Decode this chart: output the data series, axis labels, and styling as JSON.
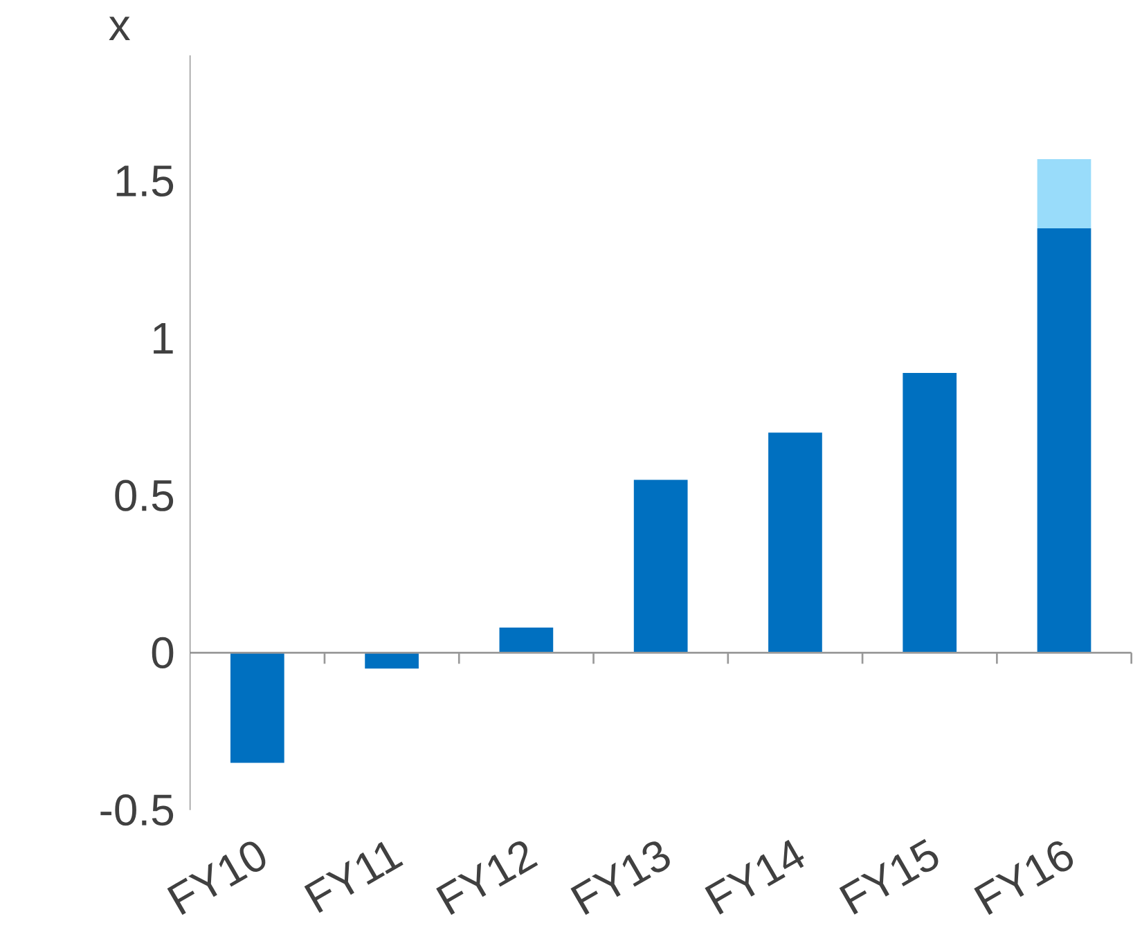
{
  "chart_data": {
    "type": "bar",
    "stacked": true,
    "ylabel": "x",
    "categories": [
      "FY10",
      "FY11",
      "FY12",
      "FY13",
      "FY14",
      "FY15",
      "FY16"
    ],
    "series": [
      {
        "color": "#0070c0",
        "values": [
          -0.35,
          -0.05,
          0.08,
          0.55,
          0.7,
          0.89,
          1.35
        ]
      },
      {
        "color": "#99dcfa",
        "values": [
          null,
          null,
          null,
          null,
          null,
          null,
          0.22
        ]
      }
    ],
    "ylim": [
      -0.5,
      1.9
    ],
    "yticks": [
      -0.5,
      0,
      0.5,
      1,
      1.5
    ]
  }
}
